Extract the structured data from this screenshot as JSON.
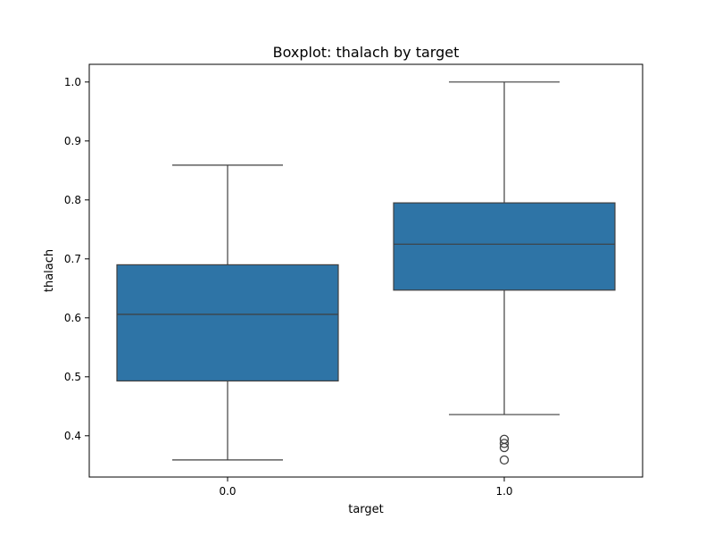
{
  "chart_data": {
    "type": "boxplot",
    "title": "Boxplot: thalach by target",
    "xlabel": "target",
    "ylabel": "thalach",
    "ylim": [
      0.33,
      1.03
    ],
    "yticks": [
      "0.4",
      "0.5",
      "0.6",
      "0.7",
      "0.8",
      "0.9",
      "1.0"
    ],
    "grid": false,
    "box_color": "#2e74a6",
    "line_color": "#3f3f3f",
    "groups": [
      {
        "label": "0.0",
        "whisker_low": 0.359,
        "q1": 0.493,
        "median": 0.606,
        "q3": 0.69,
        "whisker_high": 0.859,
        "outliers": []
      },
      {
        "label": "1.0",
        "whisker_low": 0.436,
        "q1": 0.647,
        "median": 0.725,
        "q3": 0.795,
        "whisker_high": 1.0,
        "outliers": [
          0.394,
          0.387,
          0.38,
          0.359
        ]
      }
    ]
  }
}
